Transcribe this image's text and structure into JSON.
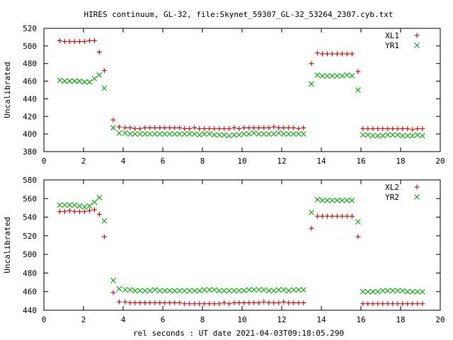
{
  "title": "HIRES continuum, GL-32, file:Skynet_59307_GL-32_53264_2307.cyb.txt",
  "xlabel": "rel seconds : UT date 2021-04-03T09:18:05.290",
  "chart_data": [
    {
      "type": "scatter",
      "ylabel": "Uncalibrated",
      "xlim": [
        0,
        20
      ],
      "ylim": [
        380,
        520
      ],
      "xticks": [
        0,
        2,
        4,
        6,
        8,
        10,
        12,
        14,
        16,
        18,
        20
      ],
      "yticks": [
        380,
        400,
        420,
        440,
        460,
        480,
        500,
        520
      ],
      "legend_position": "top-right",
      "series": [
        {
          "name": "XL1",
          "marker": "plus",
          "color": "#cc0000",
          "x": [
            0.8,
            1.05,
            1.3,
            1.55,
            1.8,
            2.05,
            2.3,
            2.55,
            2.8,
            3.05,
            3.5,
            3.8,
            4.1,
            4.35,
            4.6,
            4.85,
            5.1,
            5.35,
            5.6,
            5.85,
            6.1,
            6.35,
            6.6,
            6.85,
            7.1,
            7.35,
            7.6,
            7.85,
            8.1,
            8.35,
            8.6,
            8.85,
            9.1,
            9.35,
            9.6,
            9.85,
            10.1,
            10.35,
            10.6,
            10.85,
            11.1,
            11.35,
            11.6,
            11.85,
            12.1,
            12.35,
            12.6,
            12.85,
            13.1,
            13.5,
            13.8,
            14.05,
            14.3,
            14.55,
            14.8,
            15.05,
            15.3,
            15.55,
            15.85,
            16.1,
            16.35,
            16.6,
            16.85,
            17.1,
            17.35,
            17.6,
            17.85,
            18.1,
            18.35,
            18.6,
            18.85,
            19.1
          ],
          "y": [
            506,
            505,
            505,
            505,
            505,
            505,
            506,
            506,
            493,
            472,
            416,
            408,
            407,
            407,
            406,
            406,
            407,
            407,
            407,
            407,
            407,
            407,
            407,
            407,
            406,
            406,
            407,
            406,
            406,
            406,
            406,
            406,
            406,
            406,
            407,
            406,
            407,
            407,
            407,
            407,
            407,
            407,
            408,
            407,
            407,
            407,
            407,
            406,
            407,
            480,
            492,
            491,
            491,
            491,
            491,
            491,
            491,
            491,
            471,
            406,
            406,
            406,
            406,
            406,
            406,
            406,
            406,
            406,
            406,
            405,
            406,
            406
          ]
        },
        {
          "name": "YR1",
          "marker": "cross",
          "color": "#00aa00",
          "x": [
            0.8,
            1.05,
            1.3,
            1.55,
            1.8,
            2.05,
            2.3,
            2.55,
            2.8,
            3.05,
            3.5,
            3.8,
            4.1,
            4.35,
            4.6,
            4.85,
            5.1,
            5.35,
            5.6,
            5.85,
            6.1,
            6.35,
            6.6,
            6.85,
            7.1,
            7.35,
            7.6,
            7.85,
            8.1,
            8.35,
            8.6,
            8.85,
            9.1,
            9.35,
            9.6,
            9.85,
            10.1,
            10.35,
            10.6,
            10.85,
            11.1,
            11.35,
            11.6,
            11.85,
            12.1,
            12.35,
            12.6,
            12.85,
            13.1,
            13.5,
            13.8,
            14.05,
            14.3,
            14.55,
            14.8,
            15.05,
            15.3,
            15.55,
            15.85,
            16.1,
            16.35,
            16.6,
            16.85,
            17.1,
            17.35,
            17.6,
            17.85,
            18.1,
            18.35,
            18.6,
            18.85,
            19.1
          ],
          "y": [
            461,
            460,
            460,
            460,
            460,
            459,
            459,
            463,
            467,
            452,
            407,
            401,
            401,
            400,
            400,
            400,
            400,
            400,
            400,
            400,
            400,
            400,
            400,
            400,
            400,
            400,
            400,
            399,
            400,
            400,
            399,
            399,
            399,
            398,
            399,
            399,
            400,
            400,
            401,
            400,
            400,
            400,
            400,
            401,
            400,
            400,
            400,
            400,
            400,
            457,
            467,
            466,
            466,
            466,
            466,
            466,
            467,
            466,
            450,
            399,
            399,
            398,
            398,
            398,
            399,
            399,
            399,
            398,
            398,
            398,
            399,
            398
          ]
        }
      ]
    },
    {
      "type": "scatter",
      "ylabel": "Uncalibrated",
      "xlim": [
        0,
        20
      ],
      "ylim": [
        440,
        580
      ],
      "xticks": [
        0,
        2,
        4,
        6,
        8,
        10,
        12,
        14,
        16,
        18,
        20
      ],
      "yticks": [
        440,
        460,
        480,
        500,
        520,
        540,
        560,
        580
      ],
      "legend_position": "top-right",
      "series": [
        {
          "name": "XL2",
          "marker": "plus",
          "color": "#cc0000",
          "x": [
            0.8,
            1.05,
            1.3,
            1.55,
            1.8,
            2.05,
            2.3,
            2.55,
            2.8,
            3.05,
            3.5,
            3.8,
            4.1,
            4.35,
            4.6,
            4.85,
            5.1,
            5.35,
            5.6,
            5.85,
            6.1,
            6.35,
            6.6,
            6.85,
            7.1,
            7.35,
            7.6,
            7.85,
            8.1,
            8.35,
            8.6,
            8.85,
            9.1,
            9.35,
            9.6,
            9.85,
            10.1,
            10.35,
            10.6,
            10.85,
            11.1,
            11.35,
            11.6,
            11.85,
            12.1,
            12.35,
            12.6,
            12.85,
            13.1,
            13.5,
            13.8,
            14.05,
            14.3,
            14.55,
            14.8,
            15.05,
            15.3,
            15.55,
            15.85,
            16.1,
            16.35,
            16.6,
            16.85,
            17.1,
            17.35,
            17.6,
            17.85,
            18.1,
            18.35,
            18.6,
            18.85,
            19.1
          ],
          "y": [
            546,
            546,
            547,
            546,
            546,
            546,
            547,
            548,
            543,
            519,
            459,
            449,
            449,
            448,
            448,
            448,
            448,
            448,
            448,
            448,
            448,
            448,
            448,
            448,
            447,
            447,
            447,
            447,
            447,
            447,
            447,
            447,
            448,
            447,
            448,
            448,
            448,
            448,
            448,
            448,
            449,
            448,
            448,
            448,
            449,
            448,
            448,
            448,
            448,
            528,
            541,
            541,
            541,
            541,
            541,
            541,
            541,
            541,
            519,
            447,
            447,
            447,
            447,
            447,
            447,
            447,
            447,
            447,
            447,
            447,
            447,
            447
          ]
        },
        {
          "name": "YR2",
          "marker": "cross",
          "color": "#00aa00",
          "x": [
            0.8,
            1.05,
            1.3,
            1.55,
            1.8,
            2.05,
            2.3,
            2.55,
            2.8,
            3.05,
            3.5,
            3.8,
            4.1,
            4.35,
            4.6,
            4.85,
            5.1,
            5.35,
            5.6,
            5.85,
            6.1,
            6.35,
            6.6,
            6.85,
            7.1,
            7.35,
            7.6,
            7.85,
            8.1,
            8.35,
            8.6,
            8.85,
            9.1,
            9.35,
            9.6,
            9.85,
            10.1,
            10.35,
            10.6,
            10.85,
            11.1,
            11.35,
            11.6,
            11.85,
            12.1,
            12.35,
            12.6,
            12.85,
            13.1,
            13.5,
            13.8,
            14.05,
            14.3,
            14.55,
            14.8,
            15.05,
            15.3,
            15.55,
            15.85,
            16.1,
            16.35,
            16.6,
            16.85,
            17.1,
            17.35,
            17.6,
            17.85,
            18.1,
            18.35,
            18.6,
            18.85,
            19.1
          ],
          "y": [
            553,
            553,
            553,
            553,
            552,
            551,
            552,
            556,
            561,
            536,
            472,
            463,
            462,
            462,
            461,
            461,
            461,
            461,
            462,
            461,
            461,
            461,
            461,
            461,
            461,
            461,
            461,
            461,
            462,
            462,
            462,
            461,
            461,
            461,
            461,
            461,
            461,
            462,
            462,
            462,
            462,
            461,
            461,
            462,
            462,
            461,
            462,
            462,
            462,
            545,
            559,
            558,
            558,
            558,
            558,
            558,
            558,
            558,
            535,
            460,
            460,
            460,
            460,
            461,
            461,
            461,
            461,
            461,
            460,
            460,
            460,
            460
          ]
        }
      ]
    }
  ]
}
